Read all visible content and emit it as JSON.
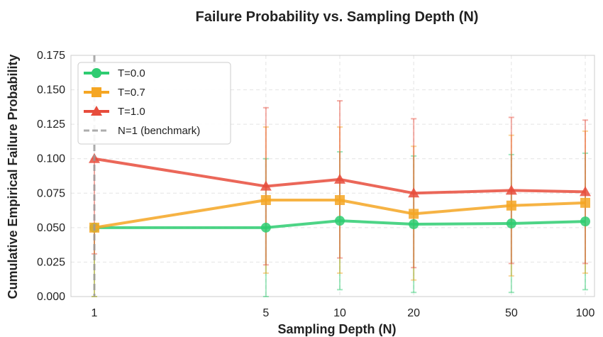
{
  "chart_data": {
    "type": "line",
    "title": "Failure Probability vs. Sampling Depth (N)",
    "xlabel": "Sampling Depth (N)",
    "ylabel": "Cumulative Empirical Failure Probability",
    "x_scale": "log",
    "categories": [
      "1",
      "5",
      "10",
      "20",
      "50",
      "100"
    ],
    "x": [
      1,
      5,
      10,
      20,
      50,
      100
    ],
    "ylim": [
      0,
      0.175
    ],
    "yticks": [
      "0.000",
      "0.025",
      "0.050",
      "0.075",
      "0.100",
      "0.125",
      "0.150",
      "0.175"
    ],
    "grid": true,
    "legend_position": "top-left",
    "series": [
      {
        "name": "T=0.0",
        "color": "#2ecc71",
        "marker": "circle",
        "values": [
          0.05,
          0.05,
          0.055,
          0.0525,
          0.053,
          0.0545
        ],
        "err_low": [
          0.0,
          0.0,
          0.005,
          0.003,
          0.003,
          0.005
        ],
        "err_high": [
          0.05,
          0.1,
          0.105,
          0.102,
          0.103,
          0.104
        ]
      },
      {
        "name": "T=0.7",
        "color": "#f5a623",
        "marker": "square",
        "values": [
          0.05,
          0.07,
          0.07,
          0.06,
          0.066,
          0.068
        ],
        "err_low": [
          0.0,
          0.017,
          0.017,
          0.012,
          0.015,
          0.017
        ],
        "err_high": [
          0.05,
          0.123,
          0.123,
          0.109,
          0.117,
          0.12
        ]
      },
      {
        "name": "T=1.0",
        "color": "#e74c3c",
        "marker": "triangle",
        "values": [
          0.1,
          0.08,
          0.085,
          0.075,
          0.077,
          0.076
        ],
        "err_low": [
          0.031,
          0.023,
          0.028,
          0.021,
          0.024,
          0.024
        ],
        "err_high": [
          0.1,
          0.137,
          0.142,
          0.129,
          0.13,
          0.128
        ]
      }
    ],
    "reference_line": {
      "name": "N=1 (benchmark)",
      "x": 1,
      "color": "#999999",
      "style": "dashed"
    }
  }
}
